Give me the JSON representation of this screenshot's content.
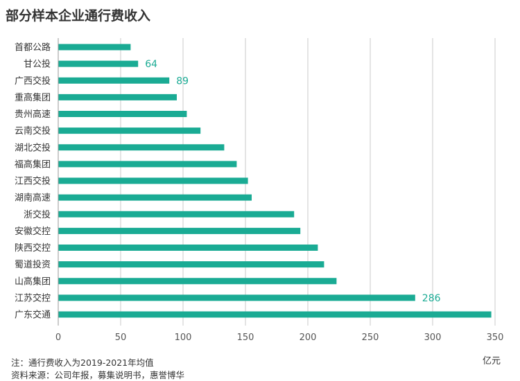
{
  "title": "部分样本企业通行费收入",
  "unit": "亿元",
  "note": "注：通行费收入为2019-2021年均值",
  "source": "资料来源：公司年报，募集说明书，惠誉博华",
  "colors": {
    "bar": "#1aab94",
    "label": "#1aab94",
    "grid": "#c8c8c8",
    "axis": "#999999"
  },
  "chart_data": {
    "type": "bar",
    "orientation": "horizontal",
    "title": "部分样本企业通行费收入",
    "xlabel": "亿元",
    "ylabel": "",
    "xlim": [
      0,
      350
    ],
    "xticks": [
      0,
      50,
      100,
      150,
      200,
      250,
      300,
      350
    ],
    "grid": "vertical",
    "categories": [
      "首都公路",
      "甘公投",
      "广西交投",
      "重高集团",
      "贵州高速",
      "云南交投",
      "湖北交投",
      "福高集团",
      "江西交投",
      "湖南高速",
      "浙交投",
      "安徽交控",
      "陕西交控",
      "蜀道投资",
      "山高集团",
      "江苏交控",
      "广东交通"
    ],
    "values": [
      58,
      64,
      89,
      95,
      103,
      114,
      133,
      143,
      152,
      155,
      189,
      194,
      208,
      213,
      223,
      286,
      347
    ],
    "data_labels": [
      {
        "category": "甘公投",
        "text": "64"
      },
      {
        "category": "广西交投",
        "text": "89"
      },
      {
        "category": "江苏交控",
        "text": "286"
      }
    ]
  }
}
